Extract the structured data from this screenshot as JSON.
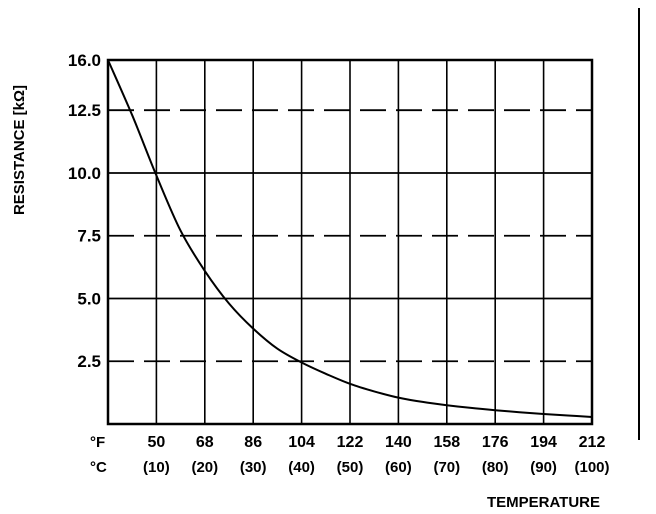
{
  "chart_data": {
    "type": "line",
    "title": "",
    "ylabel": "RESISTANCE [kΩ]",
    "xlabel": "TEMPERATURE",
    "x_unit_primary": "°F",
    "x_unit_secondary": "°C",
    "x_ticks_f": [
      "50",
      "68",
      "86",
      "104",
      "122",
      "140",
      "158",
      "176",
      "194",
      "212"
    ],
    "x_ticks_c": [
      "(10)",
      "(20)",
      "(30)",
      "(40)",
      "(50)",
      "(60)",
      "(70)",
      "(80)",
      "(90)",
      "(100)"
    ],
    "y_ticks": [
      "16.0",
      "12.5",
      "10.0",
      "7.5",
      "5.0",
      "2.5"
    ],
    "xlim_f": [
      32,
      212
    ],
    "ylim": [
      0,
      14.5
    ],
    "grid": true,
    "series": [
      {
        "x_f": [
          32,
          41,
          50,
          59,
          68,
          77,
          86,
          95,
          104,
          113,
          122,
          131,
          140,
          149,
          158,
          167,
          176,
          185,
          194,
          203,
          212
        ],
        "values": [
          14.5,
          12.3,
          9.9,
          7.7,
          6.1,
          4.8,
          3.8,
          3.0,
          2.45,
          2.0,
          1.6,
          1.3,
          1.05,
          0.88,
          0.75,
          0.64,
          0.55,
          0.47,
          0.4,
          0.34,
          0.28
        ]
      }
    ]
  }
}
